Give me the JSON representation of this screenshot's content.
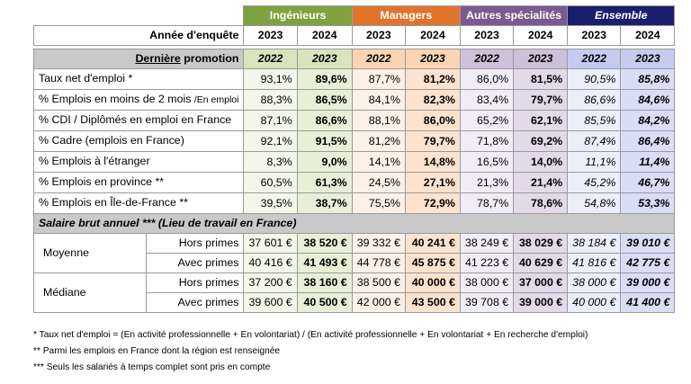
{
  "header": {
    "groups": [
      "Ingénieurs",
      "Managers",
      "Autres spécialités",
      "Ensemble"
    ],
    "year_label": "Année d'enquête",
    "years": [
      "2023",
      "2024"
    ]
  },
  "promo": {
    "label_underlined": "Dernière",
    "label_rest": " promotion",
    "years": [
      "2022",
      "2023"
    ]
  },
  "rows": [
    {
      "label": "Taux net d'emploi *",
      "label_small": "",
      "values": [
        "93,1%",
        "89,6%",
        "87,7%",
        "81,2%",
        "86,0%",
        "81,5%",
        "90,5%",
        "85,8%"
      ]
    },
    {
      "label": "% Emplois en moins de 2 mois ",
      "label_small": "/En emploi",
      "values": [
        "88,3%",
        "86,5%",
        "84,1%",
        "82,3%",
        "83,4%",
        "79,7%",
        "86,6%",
        "84,6%"
      ]
    },
    {
      "label": "% CDI / Diplômés en emploi en France",
      "label_small": "",
      "values": [
        "87,1%",
        "86,6%",
        "88,1%",
        "86,0%",
        "65,2%",
        "62,1%",
        "85,5%",
        "84,2%"
      ]
    },
    {
      "label": "% Cadre (emplois en France)",
      "label_small": "",
      "values": [
        "92,1%",
        "91,5%",
        "81,2%",
        "79,7%",
        "71,8%",
        "69,2%",
        "87,4%",
        "86,4%"
      ]
    },
    {
      "label": "% Emplois à l'étranger",
      "label_small": "",
      "values": [
        "8,3%",
        "9,0%",
        "14,1%",
        "14,8%",
        "16,5%",
        "14,0%",
        "11,1%",
        "11,4%"
      ]
    },
    {
      "label": "% Emplois en province **",
      "label_small": "",
      "values": [
        "60,5%",
        "61,3%",
        "24,5%",
        "27,1%",
        "21,3%",
        "21,4%",
        "45,2%",
        "46,7%"
      ]
    },
    {
      "label": "% Emplois en Île-de-France **",
      "label_small": "",
      "values": [
        "39,5%",
        "38,7%",
        "75,5%",
        "72,9%",
        "78,7%",
        "78,6%",
        "54,8%",
        "53,3%"
      ]
    }
  ],
  "salary": {
    "heading": "Salaire brut annuel *** (Lieu de travail en France)",
    "groups": [
      {
        "label": "Moyenne",
        "lines": [
          {
            "sub": "Hors primes",
            "values": [
              "37 601 €",
              "38 520 €",
              "39 332 €",
              "40 241 €",
              "38 249 €",
              "38 029 €",
              "38 184 €",
              "39 010 €"
            ]
          },
          {
            "sub": "Avec primes",
            "values": [
              "40 416 €",
              "41 493 €",
              "44 778 €",
              "45 875 €",
              "41 223 €",
              "40 629 €",
              "41 816 €",
              "42 775 €"
            ]
          }
        ]
      },
      {
        "label": "Médiane",
        "lines": [
          {
            "sub": "Hors primes",
            "values": [
              "37 200 €",
              "38 160 €",
              "38 500 €",
              "40 000 €",
              "38 000 €",
              "37 000 €",
              "38 000 €",
              "39 000 €"
            ]
          },
          {
            "sub": "Avec primes",
            "values": [
              "39 600 €",
              "40 500 €",
              "42 000 €",
              "43 500 €",
              "39 708 €",
              "39 000 €",
              "40 000 €",
              "41 400 €"
            ]
          }
        ]
      }
    ]
  },
  "notes": [
    "* Taux net d'emploi = (En activité professionnelle + En volontariat) / (En activité professionnelle + En volontariat + En recherche d'emploi)",
    "** Parmi les emplois en France dont la région est renseignée",
    "*** Seuls les salariés à temps complet sont pris en compte"
  ]
}
